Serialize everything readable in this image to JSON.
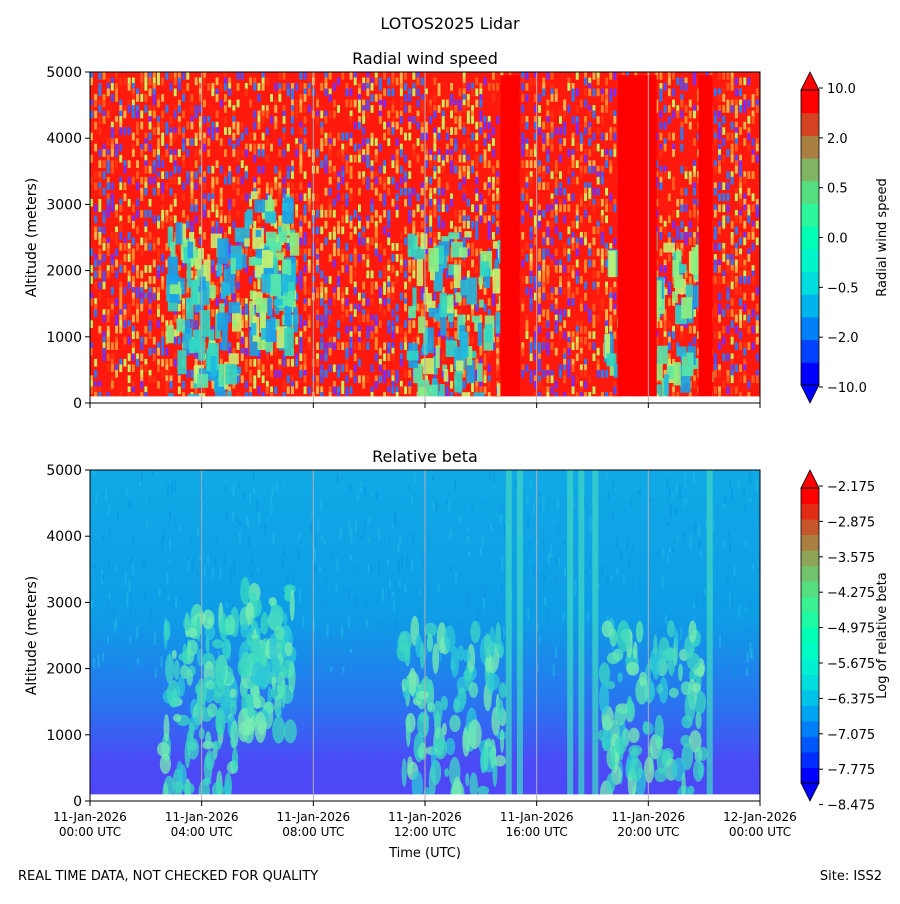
{
  "figure": {
    "suptitle": "LOTOS2025 Lidar",
    "footer_left": "REAL TIME DATA, NOT CHECKED FOR QUALITY",
    "footer_right": "Site: ISS2"
  },
  "chart_data": [
    {
      "type": "heatmap",
      "title": "Radial wind speed",
      "xlabel": "",
      "ylabel": "Altitude (meters)",
      "ylim": [
        0,
        5000
      ],
      "yticks": [
        0,
        1000,
        2000,
        3000,
        4000,
        5000
      ],
      "x_tick_labels_visible": false,
      "x_start_hours": 0,
      "x_end_hours": 24,
      "xticks_hours": [
        0,
        4,
        8,
        12,
        16,
        20,
        24
      ],
      "colorbar": {
        "label": "Radial wind speed",
        "tick_labels": [
          "10.0",
          "2.0",
          "0.5",
          "0.0",
          "−0.5",
          "−2.0",
          "−10.0"
        ],
        "levels": 13,
        "extend": "both"
      },
      "features": [
        {
          "description": "strong radial wind columns",
          "value": "above 10.0",
          "time_hours": [
            14.7,
            15.4
          ]
        },
        {
          "description": "strong radial wind columns",
          "value": "above 10.0",
          "time_hours": [
            18.9,
            20.3
          ]
        },
        {
          "description": "strong radial wind columns",
          "value": "above 10.0",
          "time_hours": [
            21.8,
            22.3
          ]
        }
      ]
    },
    {
      "type": "heatmap",
      "title": "Relative beta",
      "xlabel": "Time (UTC)",
      "ylabel": "Altitude (meters)",
      "ylim": [
        0,
        5000
      ],
      "yticks": [
        0,
        1000,
        2000,
        3000,
        4000,
        5000
      ],
      "x_tick_labels": [
        {
          "date": "11-Jan-2026",
          "time": "00:00 UTC"
        },
        {
          "date": "11-Jan-2026",
          "time": "04:00 UTC"
        },
        {
          "date": "11-Jan-2026",
          "time": "08:00 UTC"
        },
        {
          "date": "11-Jan-2026",
          "time": "12:00 UTC"
        },
        {
          "date": "11-Jan-2026",
          "time": "16:00 UTC"
        },
        {
          "date": "11-Jan-2026",
          "time": "20:00 UTC"
        },
        {
          "date": "12-Jan-2026",
          "time": "00:00 UTC"
        }
      ],
      "x_start_hours": 0,
      "x_end_hours": 24,
      "xticks_hours": [
        0,
        4,
        8,
        12,
        16,
        20,
        24
      ],
      "colorbar": {
        "label": "Log of relative beta",
        "tick_labels": [
          "−2.175",
          "−2.875",
          "−3.575",
          "−4.275",
          "−4.975",
          "−5.675",
          "−6.375",
          "−7.075",
          "−7.775",
          "−8.475"
        ],
        "levels": 19,
        "extend": "both"
      },
      "clouds": [
        {
          "time_hours": [
            2.6,
            5.2
          ],
          "altitude_m": [
            100,
            2800
          ]
        },
        {
          "time_hours": [
            5.5,
            7.3
          ],
          "altitude_m": [
            1000,
            3200
          ]
        },
        {
          "time_hours": [
            11.2,
            14.8
          ],
          "altitude_m": [
            100,
            2600
          ]
        },
        {
          "time_hours": [
            18.3,
            22.0
          ],
          "altitude_m": [
            100,
            2600
          ]
        }
      ],
      "vertical_streaks_hours": [
        15.0,
        15.4,
        17.2,
        17.6,
        18.1,
        22.2
      ]
    }
  ]
}
